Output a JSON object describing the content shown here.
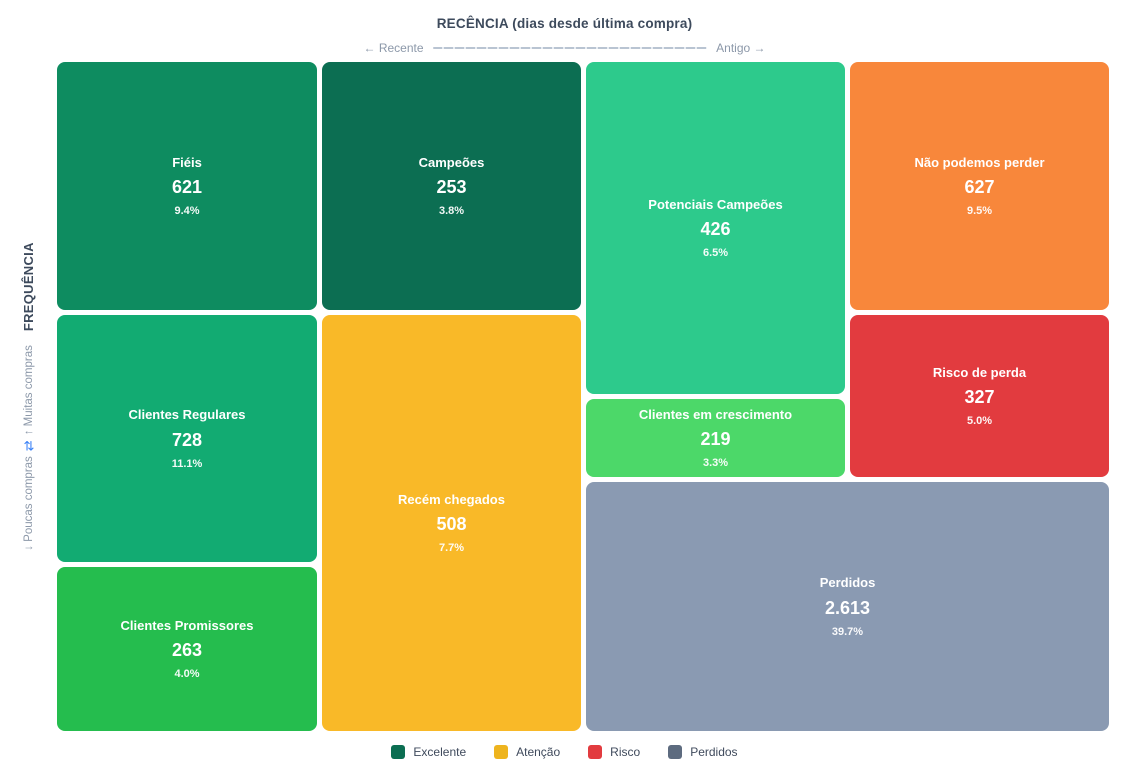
{
  "header": {
    "title": "RECÊNCIA (dias desde última compra)",
    "left_hint": "← Recente",
    "right_hint": "Antigo →"
  },
  "y_axis": {
    "title": "FREQUÊNCIA",
    "hint_low": "↓ Poucas compras",
    "hint_icon": "⇄",
    "hint_icon_color": "#3b82f6",
    "hint_high": "↑ Muitas compras"
  },
  "chart_data": {
    "type": "treemap",
    "title": "RECÊNCIA (dias desde última compra)",
    "x_axis": {
      "label": "RECÊNCIA (dias desde última compra)",
      "direction_left": "← Recente",
      "direction_right": "Antigo →"
    },
    "y_axis": {
      "label": "FREQUÊNCIA",
      "direction_low": "↓ Poucas compras",
      "direction_high": "↑ Muitas compras"
    },
    "legend_position": "bottom",
    "segments": [
      {
        "key": "fieis",
        "name": "Fiéis",
        "count": 621,
        "display_value": "621",
        "pct": 9.4,
        "display_pct": "9.4%",
        "color": "#0e8c60"
      },
      {
        "key": "campeoes",
        "name": "Campeões",
        "count": 253,
        "display_value": "253",
        "pct": 3.8,
        "display_pct": "3.8%",
        "color": "#0c6e52"
      },
      {
        "key": "potenciais-campeoes",
        "name": "Potenciais Campeões",
        "count": 426,
        "display_value": "426",
        "pct": 6.5,
        "display_pct": "6.5%",
        "color": "#2dca8c"
      },
      {
        "key": "nao-podemos-perder",
        "name": "Não podemos perder",
        "count": 627,
        "display_value": "627",
        "pct": 9.5,
        "display_pct": "9.5%",
        "color": "#f8873b"
      },
      {
        "key": "clientes-regulares",
        "name": "Clientes Regulares",
        "count": 728,
        "display_value": "728",
        "pct": 11.1,
        "display_pct": "11.1%",
        "color": "#12ab72"
      },
      {
        "key": "recem-chegados",
        "name": "Recém chegados",
        "count": 508,
        "display_value": "508",
        "pct": 7.7,
        "display_pct": "7.7%",
        "color": "#f9b928"
      },
      {
        "key": "clientes-em-crescimento",
        "name": "Clientes em crescimento",
        "count": 219,
        "display_value": "219",
        "pct": 3.3,
        "display_pct": "3.3%",
        "color": "#4cd869"
      },
      {
        "key": "risco-de-perda",
        "name": "Risco de perda",
        "count": 327,
        "display_value": "327",
        "pct": 5.0,
        "display_pct": "5.0%",
        "color": "#e23b3f"
      },
      {
        "key": "perdidos",
        "name": "Perdidos",
        "count": 2613,
        "display_value": "2.613",
        "pct": 39.7,
        "display_pct": "39.7%",
        "color": "#8a9ab2"
      },
      {
        "key": "clientes-promissores",
        "name": "Clientes Promissores",
        "count": 263,
        "display_value": "263",
        "pct": 4.0,
        "display_pct": "4.0%",
        "color": "#25bd4e"
      }
    ],
    "legend": [
      {
        "key": "excelente",
        "label": "Excelente",
        "color": "#0c6e52"
      },
      {
        "key": "atencao",
        "label": "Atenção",
        "color": "#eeb41e"
      },
      {
        "key": "risco",
        "label": "Risco",
        "color": "#e23b3f"
      },
      {
        "key": "perdidos",
        "label": "Perdidos",
        "color": "#5d6b7f"
      }
    ]
  }
}
